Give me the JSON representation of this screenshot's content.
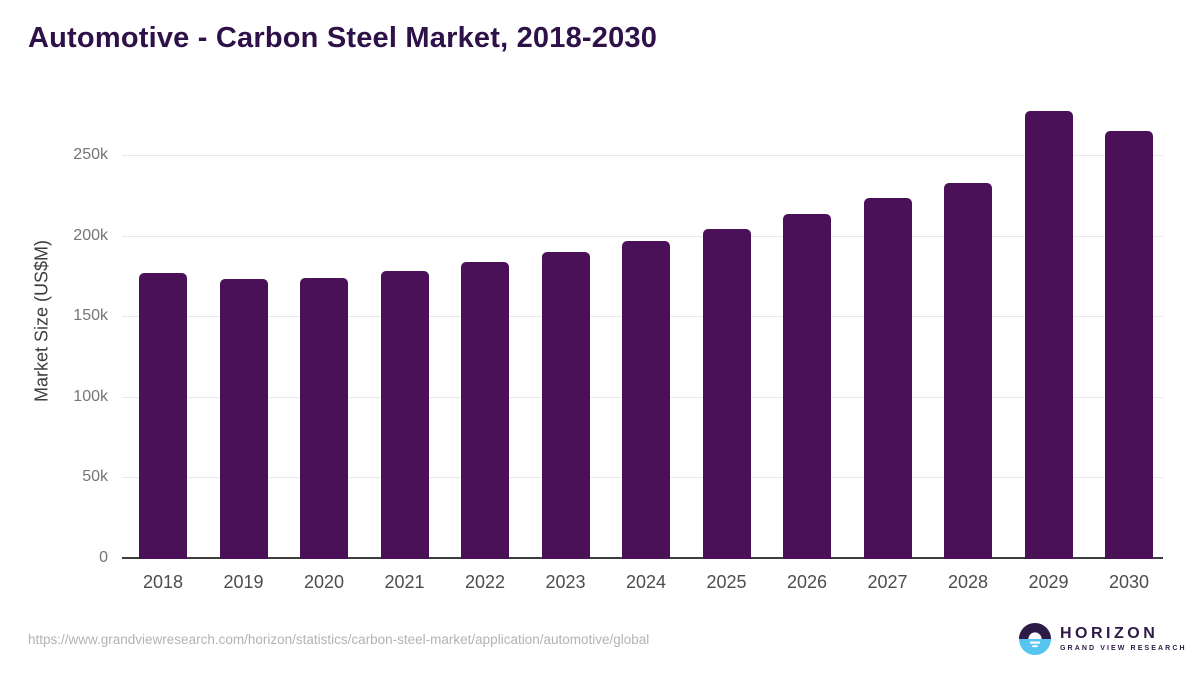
{
  "page": {
    "title": "Automotive - Carbon Steel Market, 2018-2030"
  },
  "chart_data": {
    "type": "bar",
    "title": "Automotive - Carbon Steel Market, 2018-2030",
    "xlabel": "",
    "ylabel": "Market Size (US$M)",
    "categories": [
      "2018",
      "2019",
      "2020",
      "2021",
      "2022",
      "2023",
      "2024",
      "2025",
      "2026",
      "2027",
      "2028",
      "2029",
      "2030"
    ],
    "values": [
      177400,
      174000,
      174500,
      178400,
      184100,
      190300,
      197400,
      204700,
      214000,
      223700,
      233000,
      277700,
      265800
    ],
    "ylim": [
      0,
      280000
    ],
    "yticks": [
      0,
      50000,
      100000,
      150000,
      200000,
      250000
    ],
    "ytick_labels": [
      "0",
      "50k",
      "100k",
      "150k",
      "200k",
      "250k"
    ],
    "grid": true,
    "legend": false,
    "bar_color": "#4a1158"
  },
  "footer": {
    "source_url": "https://www.grandviewresearch.com/horizon/statistics/carbon-steel-market/application/automotive/global",
    "logo": {
      "name": "HORIZON",
      "subtitle": "GRAND VIEW RESEARCH"
    }
  },
  "colors": {
    "bar": "#4a1158",
    "title_text": "#2e1148",
    "axis_line": "#3d3d3d",
    "gridline": "#e9e9e9",
    "tick_label": "#757575",
    "category_label": "#4d4d4d",
    "url_text": "#b3b3b3",
    "logo_purple": "#2e1a47",
    "logo_blue": "#56c5f2"
  }
}
